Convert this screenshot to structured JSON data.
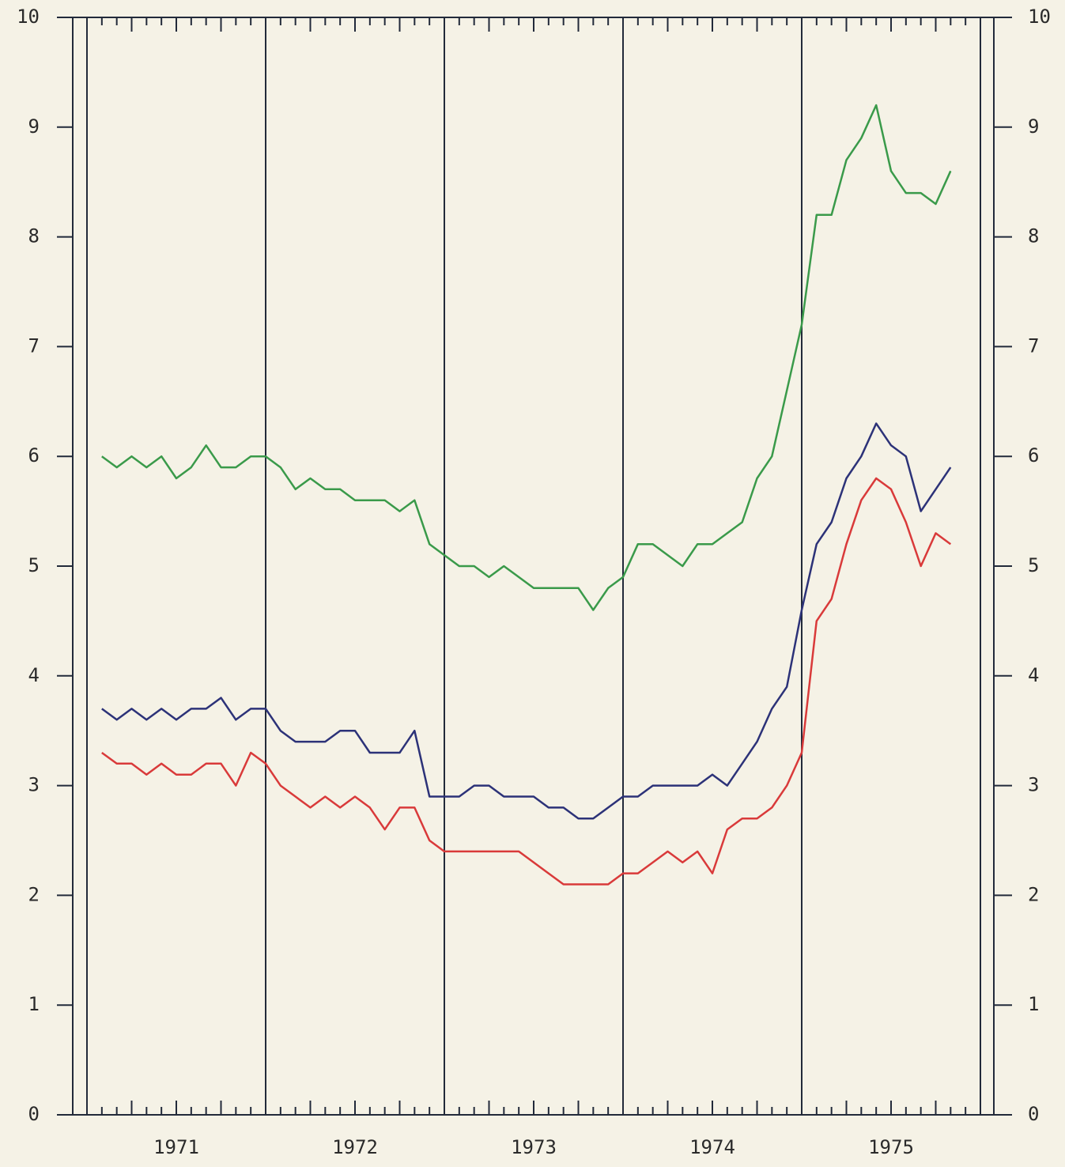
{
  "chart_data": {
    "type": "line",
    "x": [
      1971.083,
      1971.167,
      1971.25,
      1971.333,
      1971.417,
      1971.5,
      1971.583,
      1971.667,
      1971.75,
      1971.833,
      1971.917,
      1972.0,
      1972.083,
      1972.167,
      1972.25,
      1972.333,
      1972.417,
      1972.5,
      1972.583,
      1972.667,
      1972.75,
      1972.833,
      1972.917,
      1973.0,
      1973.083,
      1973.167,
      1973.25,
      1973.333,
      1973.417,
      1973.5,
      1973.583,
      1973.667,
      1973.75,
      1973.833,
      1973.917,
      1974.0,
      1974.083,
      1974.167,
      1974.25,
      1974.333,
      1974.417,
      1974.5,
      1974.583,
      1974.667,
      1974.75,
      1974.833,
      1974.917,
      1975.0,
      1975.083,
      1975.167,
      1975.25,
      1975.333,
      1975.417,
      1975.5,
      1975.583,
      1975.667,
      1975.75,
      1975.833
    ],
    "series": [
      {
        "color": "#3a9a4a",
        "values": [
          6.0,
          5.9,
          6.0,
          5.9,
          6.0,
          5.8,
          5.9,
          6.1,
          5.9,
          5.9,
          6.0,
          6.0,
          5.9,
          5.7,
          5.8,
          5.7,
          5.7,
          5.6,
          5.6,
          5.6,
          5.5,
          5.6,
          5.2,
          5.1,
          5.0,
          5.0,
          4.9,
          5.0,
          4.9,
          4.8,
          4.8,
          4.8,
          4.8,
          4.6,
          4.8,
          4.9,
          5.2,
          5.2,
          5.1,
          5.0,
          5.2,
          5.2,
          5.3,
          5.4,
          5.8,
          6.0,
          6.6,
          7.2,
          8.2,
          8.2,
          8.7,
          8.9,
          9.2,
          8.6,
          8.4,
          8.4,
          8.3,
          8.6
        ]
      },
      {
        "color": "#2c3278",
        "values": [
          3.7,
          3.6,
          3.7,
          3.6,
          3.7,
          3.6,
          3.7,
          3.7,
          3.8,
          3.6,
          3.7,
          3.7,
          3.5,
          3.4,
          3.4,
          3.4,
          3.5,
          3.5,
          3.3,
          3.3,
          3.3,
          3.5,
          2.9,
          2.9,
          2.9,
          3.0,
          3.0,
          2.9,
          2.9,
          2.9,
          2.8,
          2.8,
          2.7,
          2.7,
          2.8,
          2.9,
          2.9,
          3.0,
          3.0,
          3.0,
          3.0,
          3.1,
          3.0,
          3.2,
          3.4,
          3.7,
          3.9,
          4.6,
          5.2,
          5.4,
          5.8,
          6.0,
          6.3,
          6.1,
          6.0,
          5.5,
          5.7,
          5.9
        ]
      },
      {
        "color": "#d93a3a",
        "values": [
          3.3,
          3.2,
          3.2,
          3.1,
          3.2,
          3.1,
          3.1,
          3.2,
          3.2,
          3.0,
          3.3,
          3.2,
          3.0,
          2.9,
          2.8,
          2.9,
          2.8,
          2.9,
          2.8,
          2.6,
          2.8,
          2.8,
          2.5,
          2.4,
          2.4,
          2.4,
          2.4,
          2.4,
          2.4,
          2.3,
          2.2,
          2.1,
          2.1,
          2.1,
          2.1,
          2.2,
          2.2,
          2.3,
          2.4,
          2.3,
          2.4,
          2.2,
          2.6,
          2.7,
          2.7,
          2.8,
          3.0,
          3.3,
          4.5,
          4.7,
          5.2,
          5.6,
          5.8,
          5.7,
          5.4,
          5.0,
          5.3,
          5.2
        ]
      }
    ],
    "xlim": [
      1971,
      1976
    ],
    "xticks": [
      {
        "value": 1971.5,
        "label": "1971"
      },
      {
        "value": 1972.5,
        "label": "1972"
      },
      {
        "value": 1973.5,
        "label": "1973"
      },
      {
        "value": 1974.5,
        "label": "1974"
      },
      {
        "value": 1975.5,
        "label": "1975"
      }
    ],
    "xgrid": [
      1972,
      1973,
      1974,
      1975
    ],
    "ylim": [
      0,
      10
    ],
    "yticks": [
      0,
      1,
      2,
      3,
      4,
      5,
      6,
      7,
      8,
      9,
      10
    ],
    "y2lim": [
      0,
      10
    ],
    "y2ticks": [
      0,
      1,
      2,
      3,
      4,
      5,
      6,
      7,
      8,
      9,
      10
    ]
  }
}
